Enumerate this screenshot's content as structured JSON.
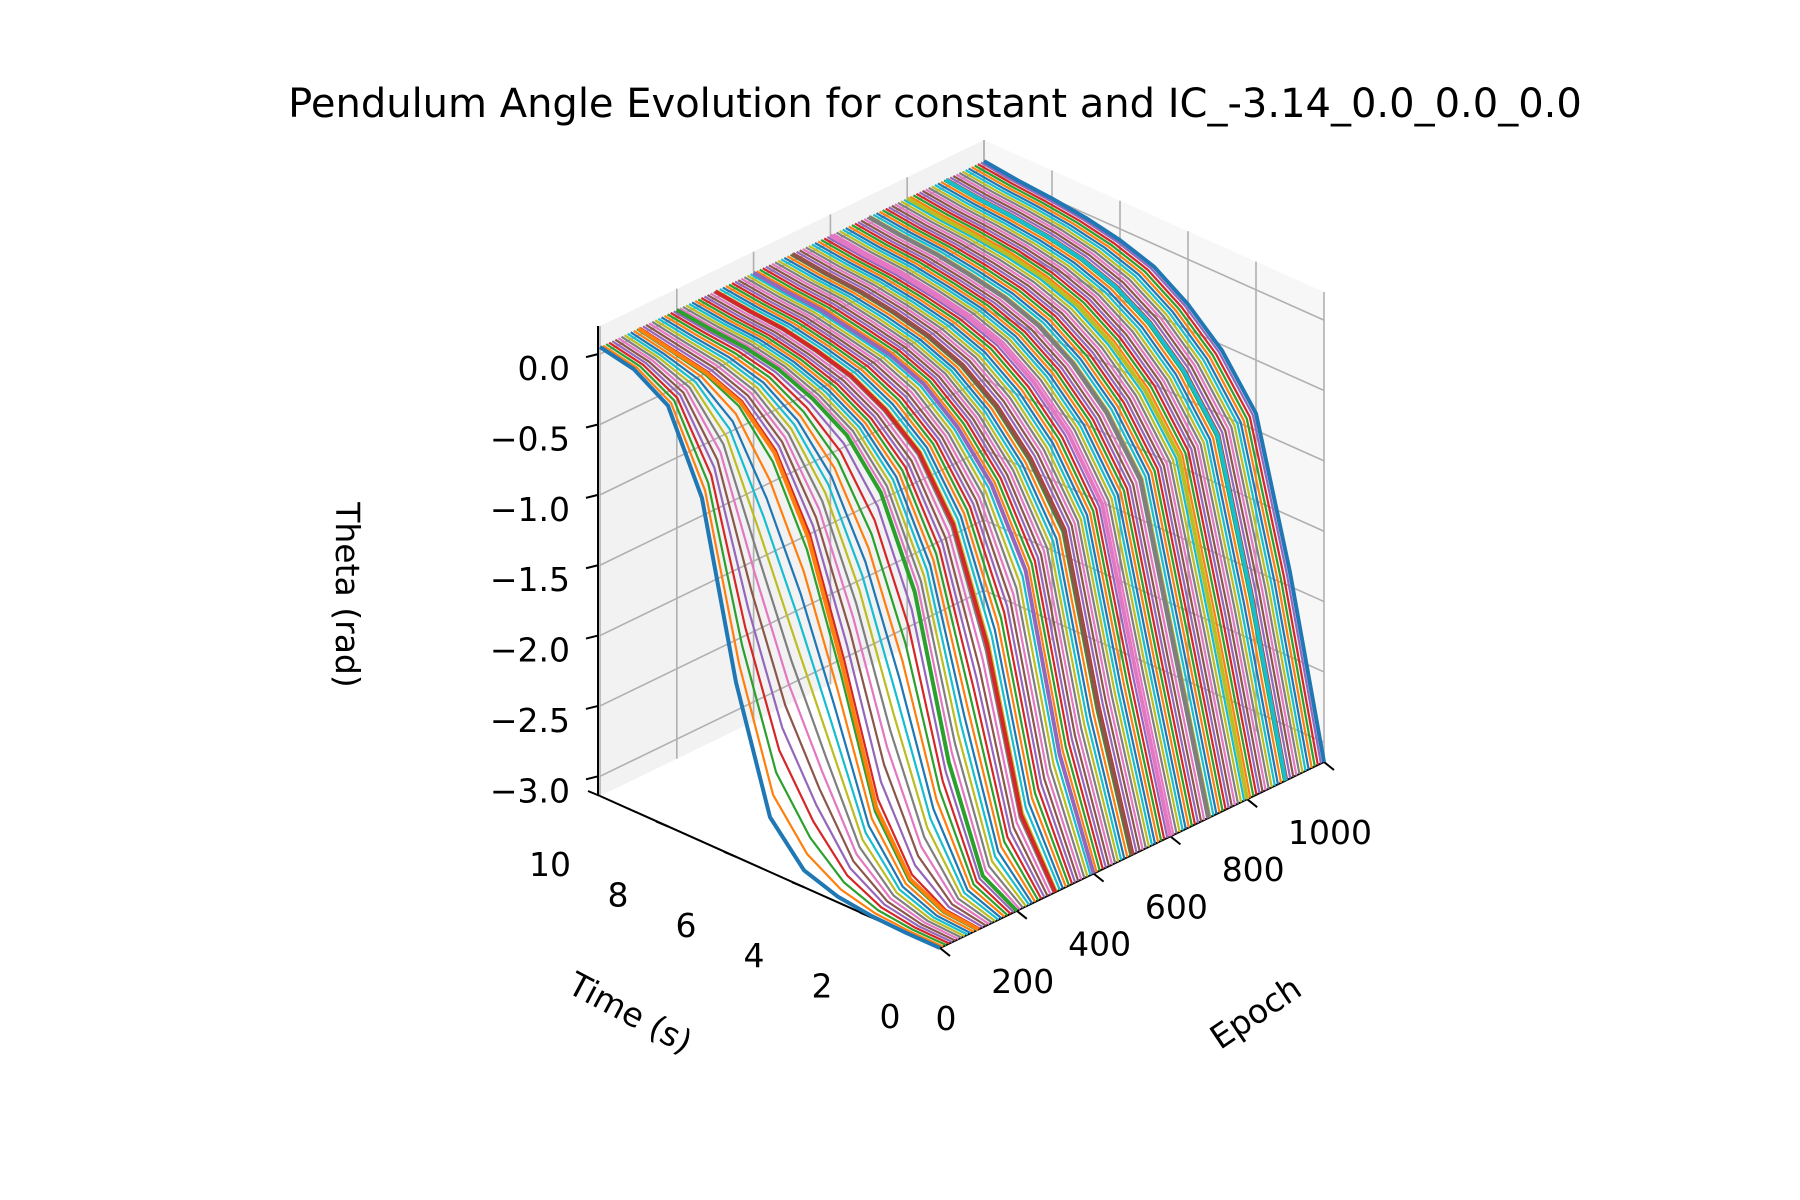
{
  "chart_data": {
    "type": "line",
    "projection": "3d",
    "title": "Pendulum Angle Evolution for constant and IC_-3.14_0.0_0.0_0.0",
    "xlabel": "Epoch",
    "ylabel": "Time (s)",
    "zlabel": "Theta (rad)",
    "xlim": [
      0,
      1000
    ],
    "ylim": [
      0,
      10
    ],
    "zlim": [
      -3.14,
      0.2
    ],
    "x_ticks": [
      "0",
      "200",
      "400",
      "600",
      "800",
      "1000"
    ],
    "y_ticks": [
      "0",
      "2",
      "4",
      "6",
      "8",
      "10"
    ],
    "z_ticks": [
      "−3.0",
      "−2.5",
      "−2.0",
      "−1.5",
      "−1.0",
      "−0.5",
      "0.0"
    ],
    "grid": true,
    "legend": "none",
    "time_samples": [
      0,
      1,
      2,
      3,
      4,
      5,
      6,
      7,
      8,
      9,
      10
    ],
    "series": [
      {
        "epoch": 0,
        "color": "#1f77b4",
        "theta": [
          -3.14,
          -3.14,
          -3.13,
          -3.1,
          -3.02,
          -2.75,
          -1.9,
          -0.7,
          -0.15,
          0.0,
          0.05
        ]
      },
      {
        "epoch": 100,
        "color": "#ff7f0e",
        "theta": [
          -3.14,
          -3.12,
          -3.0,
          -2.6,
          -1.7,
          -0.9,
          -0.4,
          -0.15,
          -0.05,
          0.0,
          0.05
        ]
      },
      {
        "epoch": 200,
        "color": "#2ca02c",
        "theta": [
          -3.14,
          -3.0,
          -2.3,
          -1.2,
          -0.6,
          -0.3,
          -0.15,
          -0.05,
          0.0,
          0.02,
          0.05
        ]
      },
      {
        "epoch": 300,
        "color": "#d62728",
        "theta": [
          -3.14,
          -2.7,
          -1.6,
          -0.85,
          -0.45,
          -0.25,
          -0.12,
          -0.05,
          0.0,
          0.02,
          0.05
        ]
      },
      {
        "epoch": 400,
        "color": "#9467bd",
        "theta": [
          -3.14,
          -2.4,
          -1.2,
          -0.7,
          -0.4,
          -0.2,
          -0.1,
          -0.05,
          0.0,
          0.02,
          0.05
        ]
      },
      {
        "epoch": 500,
        "color": "#8c564b",
        "theta": [
          -3.14,
          -2.2,
          -1.05,
          -0.65,
          -0.38,
          -0.2,
          -0.1,
          -0.04,
          0.0,
          0.02,
          0.05
        ]
      },
      {
        "epoch": 600,
        "color": "#e377c2",
        "theta": [
          -3.14,
          -2.1,
          -1.0,
          -0.6,
          -0.35,
          -0.18,
          -0.09,
          -0.04,
          0.0,
          0.02,
          0.05
        ]
      },
      {
        "epoch": 700,
        "color": "#7f7f7f",
        "theta": [
          -3.14,
          -2.05,
          -0.95,
          -0.58,
          -0.34,
          -0.18,
          -0.09,
          -0.04,
          0.0,
          0.02,
          0.05
        ]
      },
      {
        "epoch": 800,
        "color": "#bcbd22",
        "theta": [
          -3.14,
          -2.0,
          -0.92,
          -0.56,
          -0.33,
          -0.17,
          -0.08,
          -0.03,
          0.0,
          0.02,
          0.05
        ]
      },
      {
        "epoch": 900,
        "color": "#17becf",
        "theta": [
          -3.14,
          -1.95,
          -0.9,
          -0.55,
          -0.32,
          -0.17,
          -0.08,
          -0.03,
          0.0,
          0.02,
          0.05
        ]
      },
      {
        "epoch": 1000,
        "color": "#1f77b4",
        "theta": [
          -3.14,
          -1.9,
          -0.88,
          -0.54,
          -0.32,
          -0.16,
          -0.08,
          -0.03,
          0.0,
          0.02,
          0.05
        ]
      }
    ],
    "series_note_colors": [
      "#1f77b4",
      "#ff7f0e",
      "#2ca02c",
      "#d62728",
      "#9467bd",
      "#8c564b",
      "#e377c2",
      "#7f7f7f",
      "#bcbd22",
      "#17becf"
    ]
  }
}
